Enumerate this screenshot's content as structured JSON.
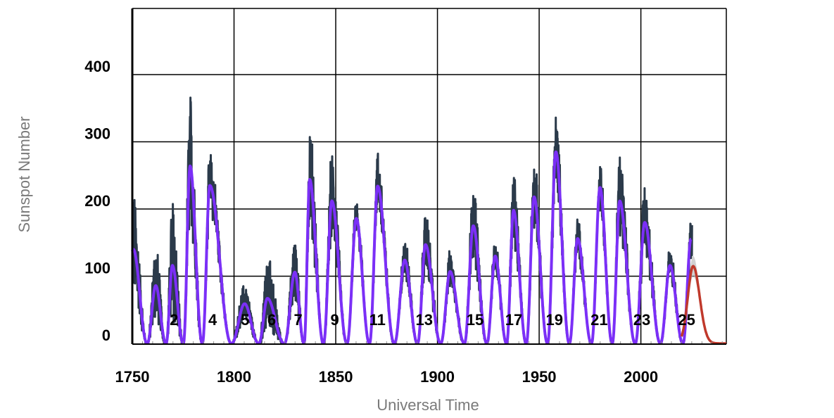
{
  "chart_data": {
    "type": "line",
    "title": "",
    "xlabel": "Universal Time",
    "ylabel": "Sunspot Number",
    "xlim": [
      1750,
      2042
    ],
    "ylim": [
      0,
      400
    ],
    "x_ticks": [
      {
        "value": 1750,
        "label": "1750"
      },
      {
        "value": 1800,
        "label": "1800"
      },
      {
        "value": 1850,
        "label": "1850"
      },
      {
        "value": 1900,
        "label": "1900"
      },
      {
        "value": 1950,
        "label": "1950"
      },
      {
        "value": 2000,
        "label": "2000"
      }
    ],
    "y_ticks": [
      {
        "value": 0,
        "label": "0"
      },
      {
        "value": 100,
        "label": "100"
      },
      {
        "value": 200,
        "label": "200"
      },
      {
        "value": 300,
        "label": "300"
      },
      {
        "value": 400,
        "label": "400"
      }
    ],
    "grid": true,
    "colors": {
      "monthly": "#2b3a4a",
      "smoothed": "#7b2ff7",
      "predicted": "#c0392b",
      "predicted_band": "#bdbdbd",
      "grid": "#000000"
    },
    "cycle_labels": [
      {
        "label": "2",
        "x": 1770.5
      },
      {
        "label": "4",
        "x": 1789.5
      },
      {
        "label": "5",
        "x": 1805.5
      },
      {
        "label": "6",
        "x": 1818.5
      },
      {
        "label": "7",
        "x": 1831.5
      },
      {
        "label": "9",
        "x": 1849.5
      },
      {
        "label": "11",
        "x": 1870.5
      },
      {
        "label": "13",
        "x": 1893.5
      },
      {
        "label": "15",
        "x": 1918.5
      },
      {
        "label": "17",
        "x": 1937.5
      },
      {
        "label": "19",
        "x": 1957.5
      },
      {
        "label": "21",
        "x": 1979.5
      },
      {
        "label": "23",
        "x": 2000.5
      },
      {
        "label": "25",
        "x": 2022.5
      }
    ],
    "cycle_maxima": [
      {
        "cycle": 0,
        "x": 1750.5,
        "smoothed": 140,
        "monthly_peak": 250
      },
      {
        "cycle": 1,
        "x": 1761.5,
        "smoothed": 86,
        "monthly_peak": 170
      },
      {
        "cycle": 2,
        "x": 1769.7,
        "smoothed": 116,
        "monthly_peak": 255
      },
      {
        "cycle": 3,
        "x": 1778.4,
        "smoothed": 264,
        "monthly_peak": 400
      },
      {
        "cycle": 4,
        "x": 1788.1,
        "smoothed": 235,
        "monthly_peak": 285
      },
      {
        "cycle": 5,
        "x": 1805.2,
        "smoothed": 59,
        "monthly_peak": 95
      },
      {
        "cycle": 6,
        "x": 1816.4,
        "smoothed": 67,
        "monthly_peak": 152
      },
      {
        "cycle": 7,
        "x": 1829.9,
        "smoothed": 106,
        "monthly_peak": 170
      },
      {
        "cycle": 8,
        "x": 1837.2,
        "smoothed": 244,
        "monthly_peak": 340
      },
      {
        "cycle": 9,
        "x": 1848.1,
        "smoothed": 212,
        "monthly_peak": 300
      },
      {
        "cycle": 10,
        "x": 1860.1,
        "smoothed": 186,
        "monthly_peak": 215
      },
      {
        "cycle": 11,
        "x": 1870.6,
        "smoothed": 234,
        "monthly_peak": 290
      },
      {
        "cycle": 12,
        "x": 1883.9,
        "smoothed": 124,
        "monthly_peak": 160
      },
      {
        "cycle": 13,
        "x": 1894.1,
        "smoothed": 147,
        "monthly_peak": 205
      },
      {
        "cycle": 14,
        "x": 1906.2,
        "smoothed": 107,
        "monthly_peak": 140
      },
      {
        "cycle": 15,
        "x": 1917.6,
        "smoothed": 175,
        "monthly_peak": 250
      },
      {
        "cycle": 16,
        "x": 1928.4,
        "smoothed": 130,
        "monthly_peak": 160
      },
      {
        "cycle": 17,
        "x": 1937.4,
        "smoothed": 198,
        "monthly_peak": 265
      },
      {
        "cycle": 18,
        "x": 1947.5,
        "smoothed": 218,
        "monthly_peak": 280
      },
      {
        "cycle": 19,
        "x": 1958.2,
        "smoothed": 285,
        "monthly_peak": 360
      },
      {
        "cycle": 20,
        "x": 1968.9,
        "smoothed": 156,
        "monthly_peak": 185
      },
      {
        "cycle": 21,
        "x": 1979.9,
        "smoothed": 232,
        "monthly_peak": 265
      },
      {
        "cycle": 22,
        "x": 1989.6,
        "smoothed": 212,
        "monthly_peak": 285
      },
      {
        "cycle": 23,
        "x": 2001.9,
        "smoothed": 180,
        "monthly_peak": 245
      },
      {
        "cycle": 24,
        "x": 2014.3,
        "smoothed": 116,
        "monthly_peak": 145
      },
      {
        "cycle": 25,
        "x": 2024.6,
        "smoothed": 155,
        "monthly_peak": 210
      }
    ],
    "predicted": {
      "start": 2020.0,
      "peak_x": 2025.7,
      "peak_value": 115,
      "end": 2042.0,
      "band_upper_peak": 130,
      "band_lower_peak": 100
    }
  }
}
